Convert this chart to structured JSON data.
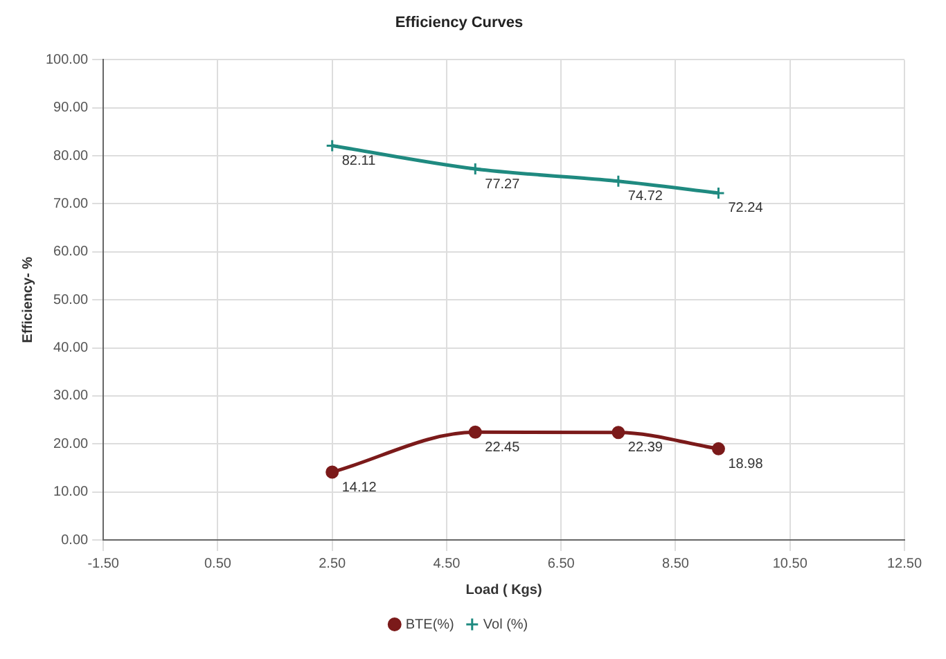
{
  "chart_data": {
    "type": "line",
    "title": "Efficiency Curves",
    "xlabel": "Load ( Kgs)",
    "ylabel": "Efficiency- %",
    "x": [
      2.5,
      5,
      7.5,
      9.25
    ],
    "series": [
      {
        "name": "BTE(%)",
        "color": "#7b1a1a",
        "marker": "circle",
        "values": [
          14.12,
          22.45,
          22.39,
          18.98
        ]
      },
      {
        "name": "Vol (%)",
        "color": "#1f8a80",
        "marker": "cross",
        "values": [
          82.11,
          77.27,
          74.72,
          72.24
        ]
      }
    ],
    "xlim": [
      -1.5,
      12.5
    ],
    "xticks": [
      {
        "value": -1.5,
        "label": "-1.50"
      },
      {
        "value": 0.5,
        "label": "0.50"
      },
      {
        "value": 2.5,
        "label": "2.50"
      },
      {
        "value": 4.5,
        "label": "4.50"
      },
      {
        "value": 6.5,
        "label": "6.50"
      },
      {
        "value": 8.5,
        "label": "8.50"
      },
      {
        "value": 10.5,
        "label": "10.50"
      },
      {
        "value": 12.5,
        "label": "12.50"
      }
    ],
    "ylim": [
      0,
      100
    ],
    "yticks": [
      {
        "value": 0,
        "label": "0.00"
      },
      {
        "value": 10,
        "label": "10.00"
      },
      {
        "value": 20,
        "label": "20.00"
      },
      {
        "value": 30,
        "label": "30.00"
      },
      {
        "value": 40,
        "label": "40.00"
      },
      {
        "value": 50,
        "label": "50.00"
      },
      {
        "value": 60,
        "label": "60.00"
      },
      {
        "value": 70,
        "label": "70.00"
      },
      {
        "value": 80,
        "label": "80.00"
      },
      {
        "value": 90,
        "label": "90.00"
      },
      {
        "value": 100,
        "label": "100.00"
      }
    ],
    "grid": true,
    "legend": "bottom",
    "data_labels": true
  }
}
